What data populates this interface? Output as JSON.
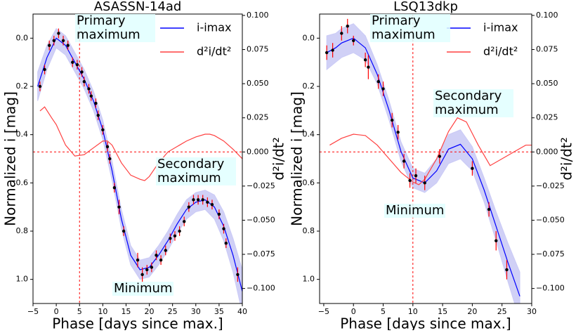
{
  "chart_data": [
    {
      "type": "line",
      "title": "ASASSN-14ad",
      "xlabel": "Phase [days since max.]",
      "ylabel": "Normalized i [mag]",
      "y2label": "d²i/dt²",
      "xlim": [
        -5,
        40
      ],
      "xticks": [
        {
          "value": -5,
          "label": "−5"
        },
        0,
        5,
        10,
        15,
        20,
        25,
        30,
        35,
        40
      ],
      "ylim": [
        1.1,
        -0.1
      ],
      "yticks": [
        {
          "value": 0,
          "label": "0.0"
        },
        {
          "value": 0.2,
          "label": "0.2"
        },
        {
          "value": 0.4,
          "label": "0.4"
        },
        {
          "value": 0.6,
          "label": "0.6"
        },
        {
          "value": 0.8,
          "label": "0.8"
        },
        {
          "value": 1.0,
          "label": "1.0"
        }
      ],
      "y2lim": [
        -0.111,
        0.101
      ],
      "y2ticks": [
        {
          "value": 0.1,
          "label": "0.100"
        },
        {
          "value": 0.075,
          "label": "0.075"
        },
        {
          "value": 0.05,
          "label": "0.050"
        },
        {
          "value": 0.025,
          "label": "0.025"
        },
        {
          "value": 0,
          "label": "0.000"
        },
        {
          "value": -0.025,
          "label": "−0.025"
        },
        {
          "value": -0.05,
          "label": "−0.050"
        },
        {
          "value": -0.075,
          "label": "−0.075"
        },
        {
          "value": -0.1,
          "label": "−0.100"
        }
      ],
      "vline": 5,
      "hline_y2": 0,
      "legend": "upper right",
      "annotations": [
        "Primary maximum",
        "Secondary maximum",
        "Minimum"
      ],
      "series": [
        {
          "name": "i-imax",
          "color": "#0000ff",
          "band_color": "#c8c8f5",
          "x": [
            -4,
            -2,
            0,
            2,
            4,
            6,
            8,
            10,
            12,
            14,
            16,
            18,
            20,
            22,
            24,
            26,
            28,
            30,
            32,
            34,
            36,
            38,
            40
          ],
          "values": [
            0.2,
            0.08,
            0.0,
            0.03,
            0.1,
            0.17,
            0.26,
            0.38,
            0.55,
            0.75,
            0.9,
            0.96,
            0.95,
            0.9,
            0.84,
            0.77,
            0.71,
            0.68,
            0.67,
            0.7,
            0.78,
            0.9,
            1.05
          ],
          "band_low": [
            0.14,
            0.03,
            -0.04,
            -0.01,
            0.06,
            0.13,
            0.22,
            0.34,
            0.51,
            0.71,
            0.86,
            0.92,
            0.91,
            0.86,
            0.8,
            0.73,
            0.67,
            0.64,
            0.63,
            0.65,
            0.72,
            0.83,
            0.96
          ],
          "band_high": [
            0.26,
            0.13,
            0.04,
            0.07,
            0.14,
            0.21,
            0.3,
            0.42,
            0.59,
            0.79,
            0.94,
            1.0,
            0.99,
            0.94,
            0.88,
            0.81,
            0.75,
            0.72,
            0.71,
            0.75,
            0.84,
            0.97,
            1.14
          ]
        },
        {
          "name": "d²i/dt²",
          "color": "#ff4040",
          "axis": "y2",
          "x": [
            -3.5,
            -2.5,
            -1,
            0,
            2,
            4,
            6,
            8,
            10,
            11,
            12,
            14,
            16,
            18,
            19,
            20,
            22,
            24,
            26,
            28,
            30,
            32,
            33,
            34,
            36,
            38,
            40
          ],
          "values": [
            0.03,
            0.033,
            0.025,
            0.02,
            0.005,
            -0.003,
            -0.002,
            0.003,
            0.008,
            0.008,
            0.005,
            -0.008,
            -0.017,
            -0.02,
            -0.021,
            -0.018,
            -0.008,
            0.0,
            0.004,
            0.008,
            0.011,
            0.013,
            0.013,
            0.012,
            0.008,
            0.002,
            -0.005
          ]
        }
      ],
      "points": {
        "color": "#000000",
        "error_color": "#ff0000",
        "x": [
          -3.5,
          -2.5,
          -1.5,
          -0.5,
          0.5,
          1.5,
          2.5,
          3.5,
          4.5,
          5.5,
          6,
          7,
          7.5,
          8.5,
          9,
          10,
          11,
          11.5,
          12.5,
          13.5,
          14.5,
          17.5,
          18.5,
          19.5,
          20.5,
          21.5,
          22.5,
          23.5,
          24.5,
          25.5,
          26.5,
          27.5,
          28.5,
          29.5,
          30.5,
          31.5,
          32.5,
          33.5,
          35,
          36,
          36.5,
          39
        ],
        "values": [
          0.2,
          0.13,
          0.03,
          0.01,
          -0.02,
          0.01,
          0.03,
          0.1,
          0.11,
          0.14,
          0.18,
          0.21,
          0.24,
          0.27,
          0.32,
          0.38,
          0.45,
          0.5,
          0.62,
          0.7,
          0.8,
          0.92,
          0.98,
          0.96,
          0.95,
          0.9,
          0.92,
          0.88,
          0.83,
          0.82,
          0.8,
          0.76,
          0.7,
          0.67,
          0.67,
          0.67,
          0.68,
          0.69,
          0.73,
          0.79,
          0.85,
          0.98
        ],
        "errors": [
          0.02,
          0.02,
          0.02,
          0.02,
          0.02,
          0.02,
          0.02,
          0.02,
          0.02,
          0.02,
          0.02,
          0.02,
          0.02,
          0.02,
          0.02,
          0.02,
          0.02,
          0.02,
          0.02,
          0.03,
          0.02,
          0.03,
          0.03,
          0.02,
          0.02,
          0.02,
          0.02,
          0.02,
          0.02,
          0.02,
          0.02,
          0.02,
          0.02,
          0.02,
          0.02,
          0.02,
          0.02,
          0.02,
          0.02,
          0.02,
          0.02,
          0.03
        ]
      }
    },
    {
      "type": "line",
      "title": "LSQ13dkp",
      "xlabel": "Phase [days since max.]",
      "ylabel": "Normalized i [mag]",
      "y2label": "d²i/dt²",
      "xlim": [
        -5.7,
        30
      ],
      "xticks": [
        {
          "value": -5,
          "label": "−5"
        },
        0,
        5,
        10,
        15,
        20,
        25,
        30
      ],
      "ylim": [
        1.1,
        -0.1
      ],
      "yticks": [
        {
          "value": 0,
          "label": "0.0"
        },
        {
          "value": 0.2,
          "label": "0.2"
        },
        {
          "value": 0.4,
          "label": "0.4"
        },
        {
          "value": 0.6,
          "label": "0.6"
        },
        {
          "value": 0.8,
          "label": "0.8"
        },
        {
          "value": 1.0,
          "label": "1.0"
        }
      ],
      "y2lim": [
        -0.111,
        0.101
      ],
      "y2ticks": [
        {
          "value": 0.1,
          "label": "0.100"
        },
        {
          "value": 0.075,
          "label": "0.075"
        },
        {
          "value": 0.05,
          "label": "0.050"
        },
        {
          "value": 0.025,
          "label": "0.025"
        },
        {
          "value": 0,
          "label": "0.000"
        },
        {
          "value": -0.025,
          "label": "−0.025"
        },
        {
          "value": -0.05,
          "label": "−0.050"
        },
        {
          "value": -0.075,
          "label": "−0.075"
        },
        {
          "value": -0.1,
          "label": "−0.100"
        }
      ],
      "vline": 10,
      "hline_y2": 0,
      "legend": "upper right",
      "annotations": [
        "Primary maximum",
        "Secondary maximum",
        "Minimum"
      ],
      "series": [
        {
          "name": "i-imax",
          "color": "#0000ff",
          "band_color": "#c8c8f5",
          "x": [
            -4.5,
            -3,
            -2,
            0,
            2,
            4,
            6,
            8,
            10,
            12,
            14,
            16,
            18,
            20,
            22,
            24,
            26,
            28
          ],
          "values": [
            0.06,
            0.04,
            0.02,
            0.0,
            0.04,
            0.15,
            0.3,
            0.47,
            0.58,
            0.6,
            0.55,
            0.46,
            0.44,
            0.5,
            0.63,
            0.78,
            0.93,
            1.07
          ],
          "band_low": [
            -0.01,
            -0.02,
            -0.04,
            -0.06,
            -0.01,
            0.11,
            0.26,
            0.43,
            0.54,
            0.56,
            0.5,
            0.4,
            0.38,
            0.45,
            0.58,
            0.72,
            0.85,
            0.97
          ],
          "band_high": [
            0.13,
            0.1,
            0.08,
            0.06,
            0.09,
            0.19,
            0.34,
            0.51,
            0.62,
            0.64,
            0.6,
            0.52,
            0.5,
            0.55,
            0.68,
            0.84,
            1.01,
            1.17
          ]
        },
        {
          "name": "d²i/dt²",
          "color": "#ff4040",
          "axis": "y2",
          "x": [
            -4,
            -2,
            0,
            2,
            4,
            6,
            8,
            10,
            11,
            12,
            14,
            16,
            17.5,
            19,
            21,
            23,
            25,
            27,
            29,
            30
          ],
          "values": [
            0.005,
            0.01,
            0.013,
            0.012,
            0.005,
            -0.005,
            -0.015,
            -0.022,
            -0.024,
            -0.02,
            -0.005,
            0.015,
            0.025,
            0.022,
            0.005,
            -0.01,
            -0.005,
            0.0,
            0.005,
            0.005
          ]
        }
      ],
      "points": {
        "color": "#000000",
        "error_color": "#ff0000",
        "x": [
          -4.5,
          -3.5,
          -2,
          -1,
          0,
          2,
          2.5,
          4.2,
          5,
          6.5,
          7.5,
          8.5,
          9.5,
          10.5,
          12,
          14.5,
          20,
          22.8,
          24,
          25.8
        ],
        "values": [
          0.06,
          0.05,
          -0.02,
          -0.05,
          0.01,
          0.09,
          0.12,
          0.18,
          0.21,
          0.34,
          0.39,
          0.51,
          0.59,
          0.57,
          0.6,
          0.49,
          0.54,
          0.71,
          0.84,
          0.96
        ],
        "errors": [
          0.03,
          0.03,
          0.03,
          0.03,
          0.02,
          0.03,
          0.05,
          0.03,
          0.03,
          0.03,
          0.03,
          0.03,
          0.03,
          0.03,
          0.03,
          0.03,
          0.03,
          0.03,
          0.04,
          0.04
        ]
      }
    }
  ]
}
